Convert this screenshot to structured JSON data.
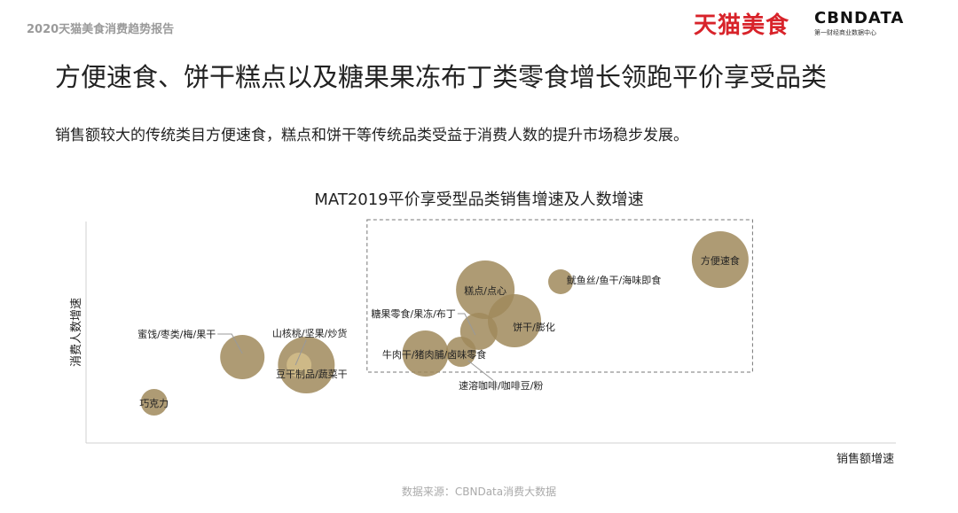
{
  "header": {
    "report_title": "2020天猫美食消费趋势报告",
    "logo_tmall": "天猫美食",
    "logo_cbn": "CBNDATA",
    "logo_cbn_sub": "第一财经商业数据中心"
  },
  "title": "方便速食、饼干糕点以及糖果果冻布丁类零食增长领跑平价享受品类",
  "subtitle": "销售额较大的传统类目方便速食，糕点和饼干等传统品类受益于消费人数的提升市场稳步发展。",
  "source": "数据来源：CBNData消费大数据",
  "watermark": "CBNData",
  "chart_data": {
    "type": "bubble",
    "title": "MAT2019平价享受型品类销售增速及人数增速",
    "xlabel": "销售额增速",
    "ylabel": "消费人数增速",
    "xlim": [
      0,
      100
    ],
    "ylim": [
      0,
      100
    ],
    "grid": false,
    "bubble_color": "#a08a5c",
    "highlight_color": "#d2bd8a",
    "highlight_box": {
      "x": [
        34.7,
        82.3
      ],
      "y": [
        32,
        100.8
      ],
      "style": "dashed"
    },
    "points": [
      {
        "label": "巧克力",
        "x": 8.4,
        "y": 18.4,
        "size": 15
      },
      {
        "label": "蜜饯/枣类/梅/果干",
        "x": 19.3,
        "y": 38.8,
        "size": 25
      },
      {
        "label": "豆干制品/蔬菜干",
        "x": 27.2,
        "y": 35.2,
        "size": 32
      },
      {
        "label": "山核桃/坚果/炒货",
        "x": 26.3,
        "y": 35.2,
        "size": 14,
        "highlight": true
      },
      {
        "label": "牛肉干/猪肉脯/卤味零食",
        "x": 41.9,
        "y": 40.4,
        "size": 26
      },
      {
        "label": "速溶咖啡/咖啡豆/粉",
        "x": 46.3,
        "y": 41.2,
        "size": 17
      },
      {
        "label": "糖果零食/果冻/布丁",
        "x": 48.5,
        "y": 50.4,
        "size": 21
      },
      {
        "label": "糕点/点心",
        "x": 49.3,
        "y": 69.2,
        "size": 33
      },
      {
        "label": "饼干/膨化",
        "x": 52.9,
        "y": 55.2,
        "size": 30
      },
      {
        "label": "鱿鱼丝/鱼干/海味即食",
        "x": 58.6,
        "y": 72.8,
        "size": 14
      },
      {
        "label": "方便速食",
        "x": 78.3,
        "y": 82.8,
        "size": 32
      }
    ]
  }
}
